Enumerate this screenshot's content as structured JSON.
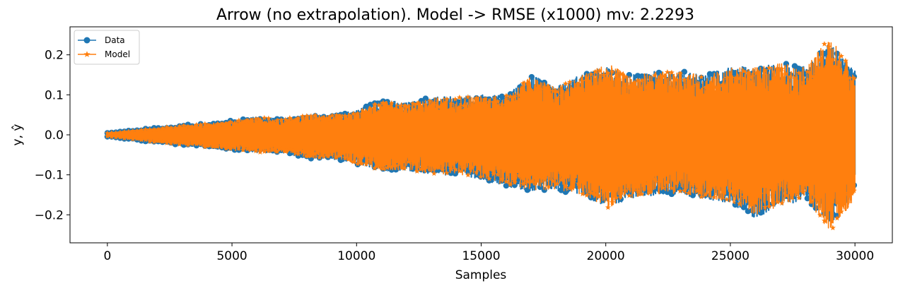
{
  "chart_data": {
    "type": "line",
    "title": "Arrow (no extrapolation). Model -> RMSE (x1000) mv: 2.2293",
    "xlabel": "Samples",
    "ylabel": "y, ŷ",
    "xlim": [
      -1500,
      31500
    ],
    "ylim": [
      -0.27,
      0.27
    ],
    "xticks": [
      0,
      5000,
      10000,
      15000,
      20000,
      25000,
      30000
    ],
    "xtick_labels": [
      "0",
      "5000",
      "10000",
      "15000",
      "20000",
      "25000",
      "30000"
    ],
    "yticks": [
      0.2,
      0.1,
      0.0,
      -0.1,
      -0.2
    ],
    "ytick_labels": [
      "0.2",
      "0.1",
      "0.0",
      "−0.1",
      "−0.2"
    ],
    "grid": false,
    "legend_position": "top-left",
    "series": [
      {
        "name": "Data",
        "color": "#1f77b4",
        "marker": "circle",
        "envelope": {
          "x": [
            0,
            1000,
            2000,
            3000,
            4000,
            5000,
            6000,
            7000,
            8000,
            9000,
            10000,
            11000,
            12000,
            13000,
            14000,
            15000,
            16000,
            17000,
            18000,
            19000,
            20000,
            21000,
            22000,
            23000,
            24000,
            25000,
            26000,
            27000,
            28000,
            29000,
            30000
          ],
          "upper": [
            0.005,
            0.012,
            0.018,
            0.024,
            0.03,
            0.036,
            0.045,
            0.04,
            0.05,
            0.05,
            0.06,
            0.09,
            0.08,
            0.095,
            0.095,
            0.1,
            0.1,
            0.15,
            0.12,
            0.15,
            0.17,
            0.15,
            0.16,
            0.16,
            0.15,
            0.17,
            0.17,
            0.18,
            0.17,
            0.23,
            0.16
          ],
          "lower": [
            -0.005,
            -0.012,
            -0.02,
            -0.026,
            -0.032,
            -0.04,
            -0.045,
            -0.045,
            -0.06,
            -0.06,
            -0.075,
            -0.09,
            -0.09,
            -0.1,
            -0.1,
            -0.11,
            -0.13,
            -0.14,
            -0.14,
            -0.15,
            -0.18,
            -0.16,
            -0.15,
            -0.15,
            -0.16,
            -0.17,
            -0.21,
            -0.18,
            -0.16,
            -0.22,
            -0.16
          ]
        }
      },
      {
        "name": "Model",
        "color": "#ff7f0e",
        "marker": "star",
        "envelope": {
          "x": [
            0,
            1000,
            2000,
            3000,
            4000,
            5000,
            6000,
            7000,
            8000,
            9000,
            10000,
            11000,
            12000,
            13000,
            14000,
            15000,
            16000,
            17000,
            18000,
            19000,
            20000,
            21000,
            22000,
            23000,
            24000,
            25000,
            26000,
            27000,
            28000,
            29000,
            30000
          ],
          "upper": [
            0.004,
            0.011,
            0.017,
            0.023,
            0.029,
            0.035,
            0.044,
            0.039,
            0.049,
            0.049,
            0.058,
            0.088,
            0.078,
            0.093,
            0.093,
            0.098,
            0.098,
            0.148,
            0.118,
            0.148,
            0.18,
            0.148,
            0.158,
            0.158,
            0.148,
            0.168,
            0.168,
            0.18,
            0.168,
            0.245,
            0.158
          ],
          "lower": [
            -0.004,
            -0.011,
            -0.019,
            -0.025,
            -0.031,
            -0.039,
            -0.044,
            -0.044,
            -0.058,
            -0.058,
            -0.073,
            -0.088,
            -0.088,
            -0.098,
            -0.098,
            -0.108,
            -0.128,
            -0.138,
            -0.138,
            -0.148,
            -0.185,
            -0.158,
            -0.148,
            -0.148,
            -0.158,
            -0.168,
            -0.2,
            -0.178,
            -0.158,
            -0.245,
            -0.158
          ]
        }
      }
    ]
  }
}
